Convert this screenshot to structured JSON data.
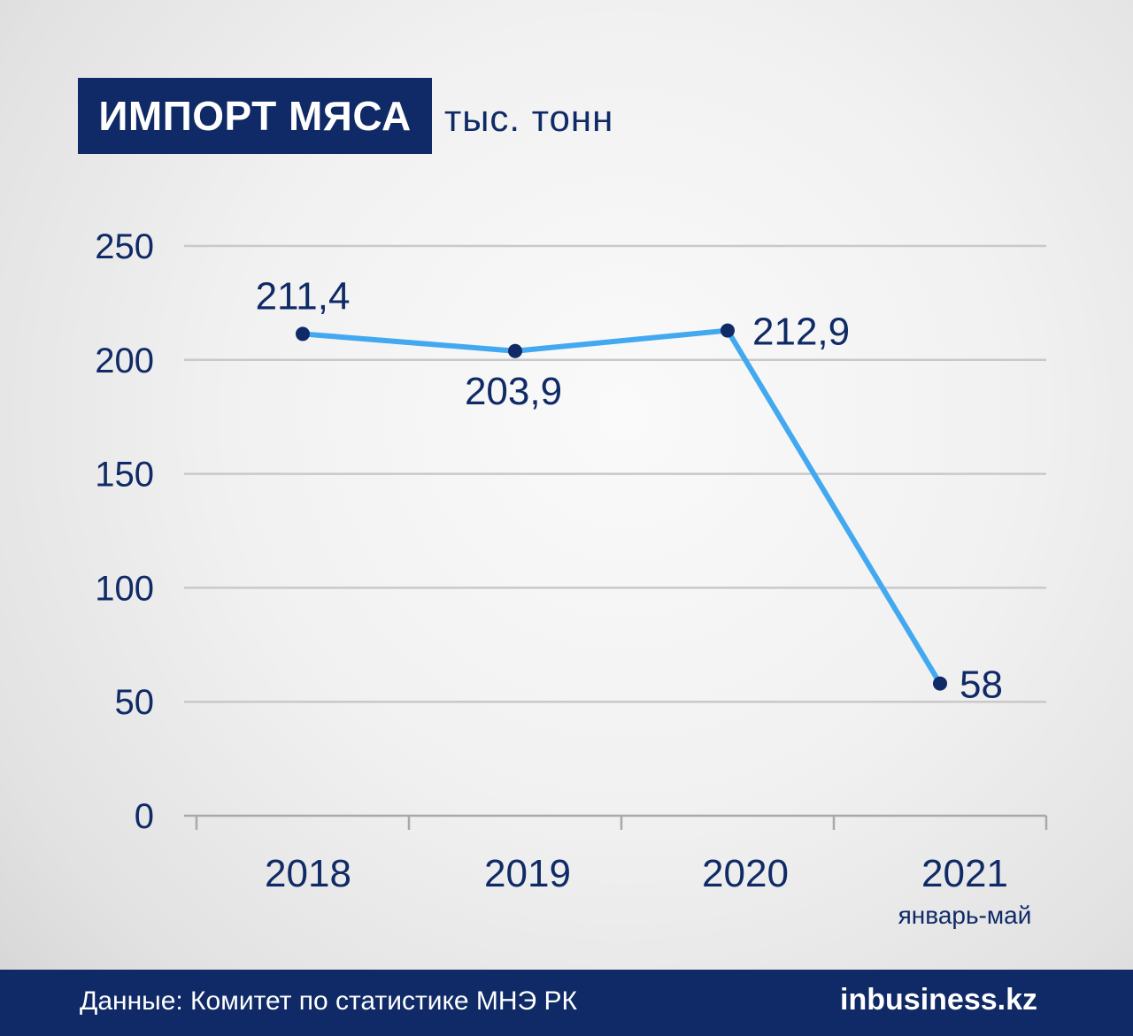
{
  "header": {
    "title": "ИМПОРТ МЯСА",
    "unit": "тыс. тонн"
  },
  "chart_data": {
    "type": "line",
    "title": "ИМПОРТ МЯСА",
    "subtitle": "тыс. тонн",
    "categories": [
      "2018",
      "2019",
      "2020",
      "2021"
    ],
    "category_notes": [
      "",
      "",
      "",
      "январь-май"
    ],
    "values": [
      211.4,
      203.9,
      212.9,
      58
    ],
    "data_labels": [
      "211,4",
      "203,9",
      "212,9",
      "58"
    ],
    "yticks": [
      0,
      50,
      100,
      150,
      200,
      250
    ],
    "ylim": [
      0,
      250
    ],
    "grid": true,
    "legend": "none",
    "colors": {
      "line": "#42a9f0",
      "marker": "#0f2a66",
      "text": "#0f2a66",
      "grid": "#c9c9c9",
      "axis": "#a9a9a9"
    }
  },
  "footer": {
    "source": "Данные: Комитет по статистике МНЭ РК",
    "logo": "inbusiness.kz"
  },
  "colors": {
    "brand": "#0f2a66",
    "accent": "#42a9f0"
  }
}
